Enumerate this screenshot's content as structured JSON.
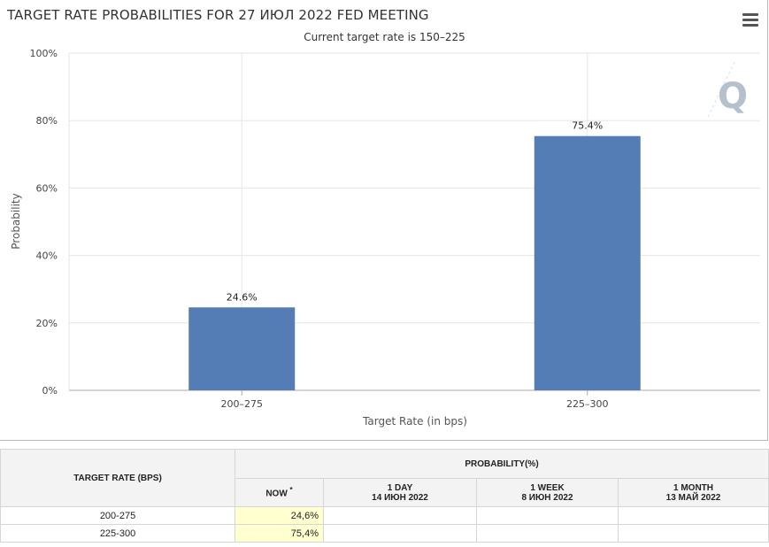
{
  "chart_data": {
    "type": "bar",
    "title": "TARGET RATE PROBABILITIES FOR 27 ИЮЛ 2022 FED MEETING",
    "subtitle": "Current target rate is 150–225",
    "categories": [
      "200–275",
      "225–300"
    ],
    "values": [
      24.6,
      75.4
    ],
    "data_labels": [
      "24.6%",
      "75.4%"
    ],
    "xlabel": "Target Rate (in bps)",
    "ylabel": "Probability",
    "ylim": [
      0,
      100
    ],
    "yticks": [
      0,
      20,
      40,
      60,
      80,
      100
    ],
    "ytick_labels": [
      "0%",
      "20%",
      "40%",
      "60%",
      "80%",
      "100%"
    ],
    "bar_color": "#547db5",
    "grid": true,
    "legend": "none"
  },
  "watermark": {
    "letter": "Q",
    "color": "#b4c0cc"
  },
  "menu": {
    "icon": "hamburger-menu-icon"
  },
  "table": {
    "target_rate_header": "TARGET RATE (BPS)",
    "probability_header": "PROBABILITY(%)",
    "columns": [
      {
        "label": "NOW",
        "marker": "*",
        "date": ""
      },
      {
        "label": "1 DAY",
        "date": "14 ИЮН 2022"
      },
      {
        "label": "1 WEEK",
        "date": "8 ИЮН 2022"
      },
      {
        "label": "1 MONTH",
        "date": "13 МАЙ 2022"
      }
    ],
    "rows": [
      {
        "rate": "200-275",
        "now": "24,6%",
        "day": "",
        "week": "",
        "month": ""
      },
      {
        "rate": "225-300",
        "now": "75,4%",
        "day": "",
        "week": "",
        "month": ""
      }
    ]
  }
}
